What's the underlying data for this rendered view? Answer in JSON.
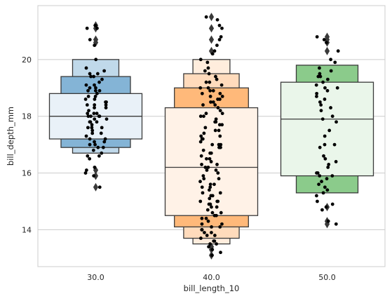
{
  "chart_data": {
    "type": "boxen",
    "title": "",
    "xlabel": "bill_length_10",
    "ylabel": "bill_depth_mm",
    "categories": [
      "30.0",
      "40.0",
      "50.0"
    ],
    "ylim": [
      12.7,
      21.9
    ],
    "yticks": [
      14,
      16,
      18,
      20
    ],
    "grid": "horizontal",
    "legend": "none",
    "groups": [
      {
        "category": "30.0",
        "color": "#1f77b4",
        "median": 18.0,
        "boxes": [
          {
            "low": 17.2,
            "high": 18.8
          },
          {
            "low": 16.9,
            "high": 19.4
          },
          {
            "low": 16.7,
            "high": 20.0
          }
        ],
        "outliers": [
          21.2,
          21.1,
          20.7,
          20.6,
          16.1,
          15.9,
          15.5
        ],
        "points": [
          21.2,
          21.1,
          21.1,
          20.7,
          20.5,
          20.0,
          19.7,
          19.6,
          19.5,
          19.4,
          19.4,
          19.3,
          19.2,
          19.1,
          19.0,
          19.0,
          18.9,
          18.9,
          18.8,
          18.7,
          18.7,
          18.6,
          18.5,
          18.5,
          18.4,
          18.4,
          18.3,
          18.2,
          18.1,
          18.1,
          18.0,
          18.0,
          18.0,
          17.9,
          17.9,
          17.8,
          17.8,
          17.7,
          17.6,
          17.6,
          17.5,
          17.4,
          17.3,
          17.2,
          17.2,
          17.1,
          17.0,
          17.0,
          16.9,
          16.8,
          16.7,
          16.6,
          16.6,
          16.5,
          16.2,
          16.1,
          16.0,
          15.9,
          15.5,
          18.0,
          18.4,
          17.6,
          19.1,
          18.9,
          17.1,
          16.9,
          18.6,
          18.3,
          17.8,
          19.5,
          17.4,
          18.1
        ]
      },
      {
        "category": "40.0",
        "color": "#ff7f0e",
        "median": 16.2,
        "boxes": [
          {
            "low": 14.5,
            "high": 18.3
          },
          {
            "low": 14.1,
            "high": 19.0
          },
          {
            "low": 13.7,
            "high": 19.5
          },
          {
            "low": 13.5,
            "high": 20.0
          }
        ],
        "outliers": [
          21.5,
          21.1,
          20.7,
          20.3,
          13.4,
          13.3,
          13.1
        ],
        "points": [
          21.5,
          21.4,
          21.2,
          21.1,
          20.8,
          20.7,
          20.5,
          20.3,
          20.2,
          20.0,
          19.9,
          19.7,
          19.6,
          19.5,
          19.4,
          19.3,
          19.2,
          19.1,
          19.0,
          19.0,
          18.9,
          18.9,
          18.8,
          18.7,
          18.7,
          18.6,
          18.5,
          18.5,
          18.4,
          18.3,
          18.2,
          18.1,
          18.0,
          18.0,
          17.9,
          17.8,
          17.8,
          17.7,
          17.6,
          17.5,
          17.4,
          17.3,
          17.2,
          17.1,
          17.0,
          17.0,
          16.9,
          16.8,
          16.7,
          16.6,
          16.5,
          16.4,
          16.3,
          16.2,
          16.2,
          16.1,
          16.0,
          15.9,
          15.8,
          15.7,
          15.6,
          15.5,
          15.4,
          15.3,
          15.2,
          15.1,
          15.0,
          15.0,
          14.9,
          14.8,
          14.7,
          14.6,
          14.5,
          14.5,
          14.4,
          14.3,
          14.2,
          14.1,
          14.0,
          14.0,
          13.9,
          13.8,
          13.7,
          13.6,
          13.5,
          13.4,
          13.3,
          13.2,
          13.1,
          16.5,
          17.2,
          15.3,
          18.4,
          14.8,
          16.9,
          17.5,
          15.6,
          14.2,
          18.8,
          19.2,
          13.9,
          16.1,
          15.0,
          17.0,
          14.6,
          18.1,
          13.6,
          15.8,
          16.7,
          14.4,
          17.7,
          15.2,
          13.8,
          14.9,
          16.3,
          18.6,
          14.1,
          15.5,
          17.3,
          13.5
        ]
      },
      {
        "category": "50.0",
        "color": "#2ca02c",
        "median": 17.9,
        "boxes": [
          {
            "low": 15.9,
            "high": 19.2
          },
          {
            "low": 15.3,
            "high": 19.8
          }
        ],
        "outliers": [
          20.8,
          20.7,
          20.6,
          20.3,
          14.8,
          14.3,
          14.2
        ],
        "points": [
          20.8,
          20.7,
          20.6,
          20.3,
          20.0,
          19.7,
          19.6,
          19.5,
          19.4,
          19.3,
          19.2,
          19.1,
          19.0,
          18.9,
          18.8,
          18.6,
          18.5,
          18.3,
          18.2,
          18.0,
          17.9,
          17.8,
          17.5,
          17.3,
          17.0,
          16.9,
          16.6,
          16.5,
          16.4,
          16.3,
          16.0,
          15.9,
          15.8,
          15.7,
          15.5,
          15.4,
          15.3,
          15.2,
          15.0,
          14.9,
          14.8,
          14.3,
          14.2,
          19.4,
          19.0,
          18.4,
          17.0,
          16.0,
          15.6,
          15.9,
          19.9,
          18.7,
          16.2,
          14.7
        ]
      }
    ]
  }
}
